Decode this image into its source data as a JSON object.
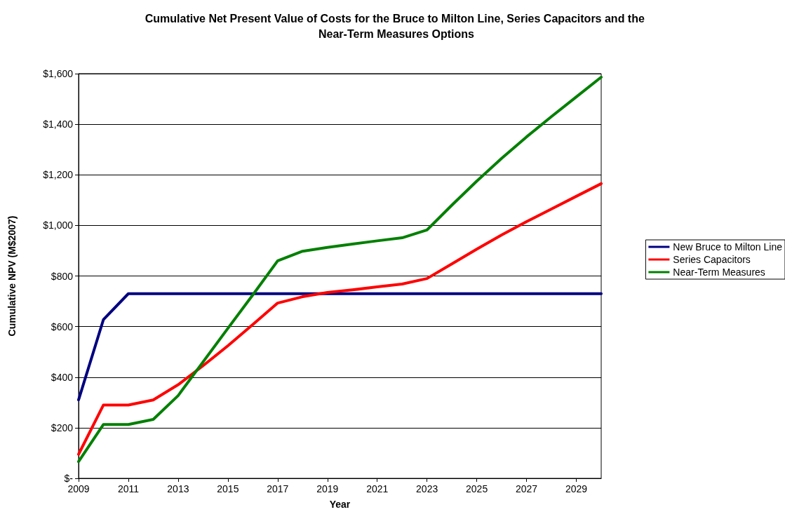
{
  "chart_data": {
    "type": "line",
    "title": "Cumulative Net Present Value of Costs for the Bruce to Milton Line, Series Capacitors and the Near-Term Measures Options",
    "xlabel": "Year",
    "ylabel": "Cumulative NPV (M$2007)",
    "x": [
      2009,
      2010,
      2011,
      2012,
      2013,
      2014,
      2015,
      2016,
      2017,
      2018,
      2019,
      2020,
      2021,
      2022,
      2023,
      2024,
      2025,
      2026,
      2027,
      2028,
      2029,
      2030
    ],
    "series": [
      {
        "name": "New Bruce to Milton Line",
        "color": "#000080",
        "values": [
          310,
          628,
          730,
          730,
          730,
          730,
          730,
          730,
          730,
          730,
          730,
          730,
          730,
          730,
          730,
          730,
          730,
          730,
          730,
          730,
          730,
          730
        ]
      },
      {
        "name": "Series Capacitors",
        "color": "#ff0000",
        "values": [
          95,
          290,
          290,
          310,
          370,
          445,
          524,
          608,
          693,
          718,
          735,
          745,
          757,
          768,
          790,
          848,
          906,
          962,
          1015,
          1065,
          1115,
          1165
        ]
      },
      {
        "name": "Near-Term Measures",
        "color": "#008000",
        "values": [
          66,
          213,
          213,
          233,
          327,
          460,
          593,
          725,
          860,
          898,
          913,
          926,
          939,
          951,
          982,
          1080,
          1175,
          1265,
          1350,
          1430,
          1508,
          1586
        ]
      }
    ],
    "xlim": [
      2009,
      2030
    ],
    "xticks": [
      2009,
      2011,
      2013,
      2015,
      2017,
      2019,
      2021,
      2023,
      2025,
      2027,
      2029
    ],
    "ylim": [
      0,
      1600
    ],
    "yticks": [
      {
        "value": 0,
        "label": "$-"
      },
      {
        "value": 200,
        "label": "$200"
      },
      {
        "value": 400,
        "label": "$400"
      },
      {
        "value": 600,
        "label": "$600"
      },
      {
        "value": 800,
        "label": "$800"
      },
      {
        "value": 1000,
        "label": "$1,000"
      },
      {
        "value": 1200,
        "label": "$1,200"
      },
      {
        "value": 1400,
        "label": "$1,400"
      },
      {
        "value": 1600,
        "label": "$1,600"
      }
    ],
    "grid": "y",
    "legend": "right",
    "marker": "none",
    "line_style": "solid"
  }
}
